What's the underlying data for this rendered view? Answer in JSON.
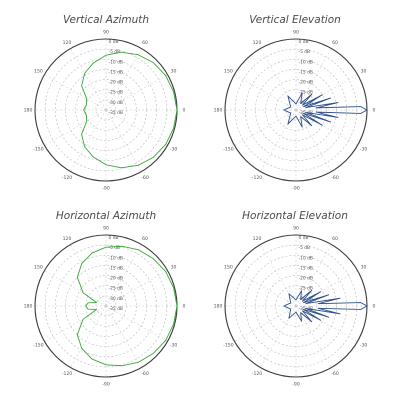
{
  "page": {
    "background": "#ffffff"
  },
  "style": {
    "ring_color": "#b9b9b9",
    "radial_color": "#c7c7c7",
    "text_color": "#555555"
  },
  "chart_data": [
    {
      "type": "polar-line",
      "title": "Vertical Azimuth",
      "series_color": "#3aa63a",
      "angle_tick_labels": [
        "0",
        "30",
        "60",
        "90",
        "120",
        "150",
        "180",
        "-150",
        "-120",
        "-90",
        "-60",
        "-30"
      ],
      "radial_tick_labels": [
        "0 dB",
        "-5 dB",
        "-10 dB",
        "-15 dB",
        "-20 dB",
        "-25 dB",
        "-30 dB",
        "-35 dB"
      ],
      "radial_range_db": [
        -35,
        0
      ],
      "grid": true,
      "series": [
        {
          "points": [
            {
              "angle_deg": 0,
              "db": 0
            },
            {
              "angle_deg": 15,
              "db": -0.5
            },
            {
              "angle_deg": 30,
              "db": -1
            },
            {
              "angle_deg": 45,
              "db": -2
            },
            {
              "angle_deg": 60,
              "db": -3.5
            },
            {
              "angle_deg": 75,
              "db": -5.5
            },
            {
              "angle_deg": 90,
              "db": -8
            },
            {
              "angle_deg": 105,
              "db": -11
            },
            {
              "angle_deg": 120,
              "db": -14
            },
            {
              "angle_deg": 135,
              "db": -18
            },
            {
              "angle_deg": 150,
              "db": -24
            },
            {
              "angle_deg": 165,
              "db": -25
            },
            {
              "angle_deg": 180,
              "db": -24
            },
            {
              "angle_deg": -165,
              "db": -25
            },
            {
              "angle_deg": -150,
              "db": -24
            },
            {
              "angle_deg": -135,
              "db": -18
            },
            {
              "angle_deg": -120,
              "db": -14
            },
            {
              "angle_deg": -105,
              "db": -11
            },
            {
              "angle_deg": -90,
              "db": -8
            },
            {
              "angle_deg": -75,
              "db": -5.5
            },
            {
              "angle_deg": -60,
              "db": -3.5
            },
            {
              "angle_deg": -45,
              "db": -2
            },
            {
              "angle_deg": -30,
              "db": -1
            },
            {
              "angle_deg": -15,
              "db": -0.5
            }
          ]
        }
      ]
    },
    {
      "type": "polar-line",
      "title": "Vertical Elevation",
      "series_color": "#2e4f8c",
      "angle_tick_labels": [
        "0",
        "30",
        "60",
        "90",
        "120",
        "150",
        "180",
        "-150",
        "-120",
        "-90",
        "-60",
        "-30"
      ],
      "radial_tick_labels": [
        "0 dB",
        "-5 dB",
        "-10 dB",
        "-15 dB",
        "-20 dB",
        "-25 dB",
        "-30 dB",
        "-35 dB"
      ],
      "radial_range_db": [
        -35,
        0
      ],
      "grid": true,
      "series": [
        {
          "points": [
            {
              "angle_deg": 0,
              "db": 0
            },
            {
              "angle_deg": 3,
              "db": -3
            },
            {
              "angle_deg": 6,
              "db": -25
            },
            {
              "angle_deg": 10,
              "db": -14
            },
            {
              "angle_deg": 14,
              "db": -30
            },
            {
              "angle_deg": 19,
              "db": -17
            },
            {
              "angle_deg": 24,
              "db": -31
            },
            {
              "angle_deg": 30,
              "db": -20
            },
            {
              "angle_deg": 37,
              "db": -31
            },
            {
              "angle_deg": 45,
              "db": -24
            },
            {
              "angle_deg": 55,
              "db": -31
            },
            {
              "angle_deg": 70,
              "db": -26
            },
            {
              "angle_deg": 90,
              "db": -32
            },
            {
              "angle_deg": 120,
              "db": -27
            },
            {
              "angle_deg": 150,
              "db": -32
            },
            {
              "angle_deg": 180,
              "db": -29
            },
            {
              "angle_deg": -150,
              "db": -32
            },
            {
              "angle_deg": -120,
              "db": -27
            },
            {
              "angle_deg": -90,
              "db": -32
            },
            {
              "angle_deg": -70,
              "db": -26
            },
            {
              "angle_deg": -55,
              "db": -31
            },
            {
              "angle_deg": -45,
              "db": -24
            },
            {
              "angle_deg": -37,
              "db": -31
            },
            {
              "angle_deg": -30,
              "db": -20
            },
            {
              "angle_deg": -24,
              "db": -31
            },
            {
              "angle_deg": -19,
              "db": -17
            },
            {
              "angle_deg": -14,
              "db": -30
            },
            {
              "angle_deg": -10,
              "db": -14
            },
            {
              "angle_deg": -6,
              "db": -25
            },
            {
              "angle_deg": -3,
              "db": -3
            }
          ]
        }
      ]
    },
    {
      "type": "polar-line",
      "title": "Horizontal Azimuth",
      "series_color": "#3aa63a",
      "angle_tick_labels": [
        "0",
        "30",
        "60",
        "90",
        "120",
        "150",
        "180",
        "-150",
        "-120",
        "-90",
        "-60",
        "-30"
      ],
      "radial_tick_labels": [
        "0 dB",
        "-5 dB",
        "-10 dB",
        "-15 dB",
        "-20 dB",
        "-25 dB",
        "-30 dB",
        "-35 dB"
      ],
      "radial_range_db": [
        -35,
        0
      ],
      "grid": true,
      "series": [
        {
          "points": [
            {
              "angle_deg": 0,
              "db": 0
            },
            {
              "angle_deg": 15,
              "db": -0.5
            },
            {
              "angle_deg": 30,
              "db": -1
            },
            {
              "angle_deg": 45,
              "db": -2
            },
            {
              "angle_deg": 60,
              "db": -3
            },
            {
              "angle_deg": 75,
              "db": -4.5
            },
            {
              "angle_deg": 90,
              "db": -6
            },
            {
              "angle_deg": 105,
              "db": -8
            },
            {
              "angle_deg": 120,
              "db": -11
            },
            {
              "angle_deg": 135,
              "db": -15
            },
            {
              "angle_deg": 150,
              "db": -22
            },
            {
              "angle_deg": 160,
              "db": -30
            },
            {
              "angle_deg": 170,
              "db": -26
            },
            {
              "angle_deg": 180,
              "db": -25
            },
            {
              "angle_deg": -170,
              "db": -26
            },
            {
              "angle_deg": -160,
              "db": -30
            },
            {
              "angle_deg": -150,
              "db": -22
            },
            {
              "angle_deg": -135,
              "db": -15
            },
            {
              "angle_deg": -120,
              "db": -11
            },
            {
              "angle_deg": -105,
              "db": -8
            },
            {
              "angle_deg": -90,
              "db": -6
            },
            {
              "angle_deg": -75,
              "db": -4.5
            },
            {
              "angle_deg": -60,
              "db": -3
            },
            {
              "angle_deg": -45,
              "db": -2
            },
            {
              "angle_deg": -30,
              "db": -1
            },
            {
              "angle_deg": -15,
              "db": -0.5
            }
          ]
        }
      ]
    },
    {
      "type": "polar-line",
      "title": "Horizontal Elevation",
      "series_color": "#2e4f8c",
      "angle_tick_labels": [
        "0",
        "30",
        "60",
        "90",
        "120",
        "150",
        "180",
        "-150",
        "-120",
        "-90",
        "-60",
        "-30"
      ],
      "radial_tick_labels": [
        "0 dB",
        "-5 dB",
        "-10 dB",
        "-15 dB",
        "-20 dB",
        "-25 dB",
        "-30 dB",
        "-35 dB"
      ],
      "radial_range_db": [
        -35,
        0
      ],
      "grid": true,
      "series": [
        {
          "points": [
            {
              "angle_deg": 0,
              "db": 0
            },
            {
              "angle_deg": 3,
              "db": -3
            },
            {
              "angle_deg": 6,
              "db": -24
            },
            {
              "angle_deg": 10,
              "db": -13
            },
            {
              "angle_deg": 14,
              "db": -30
            },
            {
              "angle_deg": 19,
              "db": -18
            },
            {
              "angle_deg": 24,
              "db": -31
            },
            {
              "angle_deg": 30,
              "db": -21
            },
            {
              "angle_deg": 37,
              "db": -31
            },
            {
              "angle_deg": 45,
              "db": -24
            },
            {
              "angle_deg": 55,
              "db": -31
            },
            {
              "angle_deg": 70,
              "db": -27
            },
            {
              "angle_deg": 90,
              "db": -32
            },
            {
              "angle_deg": 120,
              "db": -28
            },
            {
              "angle_deg": 150,
              "db": -32
            },
            {
              "angle_deg": 180,
              "db": -29
            },
            {
              "angle_deg": -150,
              "db": -32
            },
            {
              "angle_deg": -120,
              "db": -28
            },
            {
              "angle_deg": -90,
              "db": -32
            },
            {
              "angle_deg": -70,
              "db": -27
            },
            {
              "angle_deg": -55,
              "db": -31
            },
            {
              "angle_deg": -45,
              "db": -24
            },
            {
              "angle_deg": -37,
              "db": -31
            },
            {
              "angle_deg": -30,
              "db": -21
            },
            {
              "angle_deg": -24,
              "db": -31
            },
            {
              "angle_deg": -19,
              "db": -18
            },
            {
              "angle_deg": -14,
              "db": -30
            },
            {
              "angle_deg": -10,
              "db": -13
            },
            {
              "angle_deg": -6,
              "db": -24
            },
            {
              "angle_deg": -3,
              "db": -3
            }
          ]
        }
      ]
    }
  ]
}
